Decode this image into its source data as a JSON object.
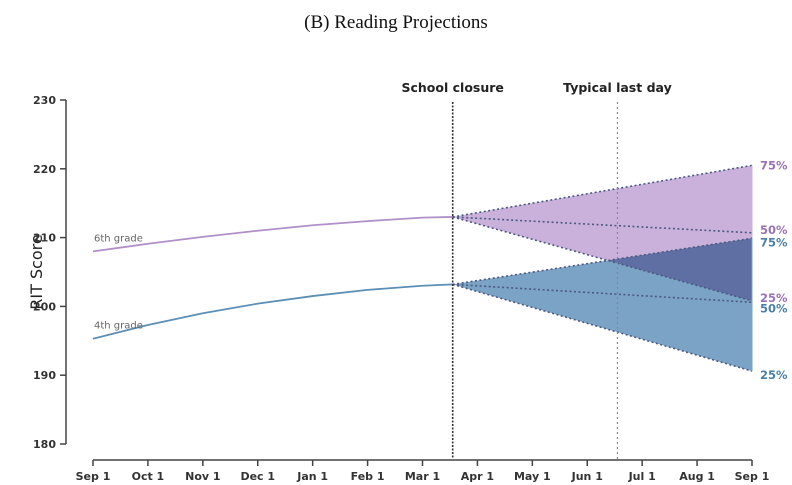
{
  "chart_data": {
    "type": "line",
    "title": "(B) Reading Projections",
    "xlabel": "",
    "ylabel": "RIT Score",
    "ylim": [
      180,
      230
    ],
    "yticks": [
      180,
      190,
      200,
      210,
      220,
      230
    ],
    "x_tick_labels": [
      "Sep 1",
      "Oct 1",
      "Nov 1",
      "Dec 1",
      "Jan 1",
      "Feb 1",
      "Mar 1",
      "Apr 1",
      "May 1",
      "Jun 1",
      "Jul 1",
      "Aug 1",
      "Sep 1"
    ],
    "xlim_months": [
      0,
      12
    ],
    "grid": false,
    "annotations": [
      {
        "label": "School closure",
        "x_month": 6.55,
        "style": "dotted-dark"
      },
      {
        "label": "Typical last day",
        "x_month": 9.55,
        "style": "dotted-light"
      }
    ],
    "series": [
      {
        "name": "6th grade",
        "color": "#b18fc9",
        "fill": "#c9b1dc",
        "observed": {
          "x_month": [
            0,
            1,
            2,
            3,
            4,
            5,
            6,
            6.55
          ],
          "values": [
            208.0,
            209.1,
            210.1,
            211.0,
            211.8,
            212.4,
            212.9,
            213.0
          ]
        },
        "projection": {
          "start": {
            "x_month": 6.55,
            "value": 213.0
          },
          "end_x_month": 12,
          "percentiles": [
            {
              "label": "75%",
              "value": 220.5
            },
            {
              "label": "50%",
              "value": 210.7
            },
            {
              "label": "25%",
              "value": 200.8
            }
          ]
        },
        "label_color": "#9a72b8"
      },
      {
        "name": "4th grade",
        "color": "#5b8fb5",
        "fill": "#7aa3c6",
        "observed": {
          "x_month": [
            0,
            1,
            2,
            3,
            4,
            5,
            6,
            6.55
          ],
          "values": [
            195.3,
            197.3,
            199.0,
            200.4,
            201.5,
            202.4,
            203.0,
            203.2
          ]
        },
        "projection": {
          "start": {
            "x_month": 6.55,
            "value": 203.2
          },
          "end_x_month": 12,
          "percentiles": [
            {
              "label": "75%",
              "value": 209.9
            },
            {
              "label": "50%",
              "value": 200.6
            },
            {
              "label": "25%",
              "value": 190.6
            }
          ]
        },
        "label_color": "#4d80a8"
      }
    ],
    "overlap_fill": "#5f6fa3",
    "projection_line_color": "#4d5a80"
  }
}
